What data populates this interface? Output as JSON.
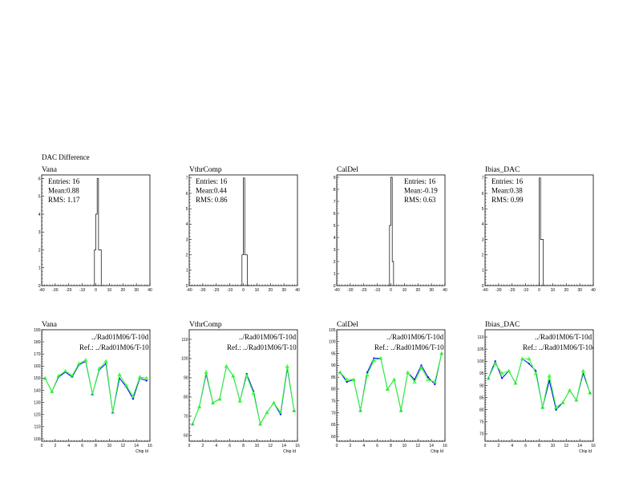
{
  "page_title": "DAC Difference",
  "chart_data": [
    {
      "type": "bar",
      "title": "Vana",
      "stats": {
        "entries": "Entries:  16",
        "mean": "Mean:0.88",
        "rms": "RMS: 1.17"
      },
      "xlim": [
        -40,
        40
      ],
      "ylim": [
        0,
        6.2
      ],
      "xticks": [
        -40,
        -30,
        -20,
        -10,
        0,
        10,
        20,
        30,
        40
      ],
      "yticks": [
        0,
        1,
        2,
        3,
        4,
        5,
        6
      ],
      "bins": [
        [
          -1,
          0
        ],
        [
          0,
          1
        ],
        [
          1,
          2
        ],
        [
          2,
          3
        ],
        [
          3,
          4
        ],
        [
          4,
          5
        ]
      ],
      "values": [
        2,
        4,
        6,
        2,
        2,
        0
      ]
    },
    {
      "type": "bar",
      "title": "VthrComp",
      "stats": {
        "entries": "Entries:  16",
        "mean": "Mean:0.44",
        "rms": "RMS: 0.86"
      },
      "xlim": [
        -40,
        40
      ],
      "ylim": [
        0,
        7.2
      ],
      "xticks": [
        -40,
        -30,
        -20,
        -10,
        0,
        10,
        20,
        30,
        40
      ],
      "yticks": [
        0,
        1,
        2,
        3,
        4,
        5,
        6,
        7
      ],
      "bins": [
        [
          -1,
          0
        ],
        [
          0,
          1
        ],
        [
          1,
          2
        ],
        [
          2,
          3
        ],
        [
          3,
          4
        ]
      ],
      "values": [
        2,
        7,
        2,
        2,
        0
      ]
    },
    {
      "type": "bar",
      "title": "CalDel",
      "stats": {
        "entries": "Entries:  16",
        "mean": "Mean:-0.19",
        "rms": "RMS: 0.63"
      },
      "xlim": [
        -40,
        40
      ],
      "ylim": [
        0,
        9.2
      ],
      "xticks": [
        -40,
        -30,
        -20,
        -10,
        0,
        10,
        20,
        30,
        40
      ],
      "yticks": [
        0,
        1,
        2,
        3,
        4,
        5,
        6,
        7,
        8,
        9
      ],
      "bins": [
        [
          -2,
          -1
        ],
        [
          -1,
          0
        ],
        [
          0,
          1
        ],
        [
          1,
          2
        ]
      ],
      "values": [
        0,
        5,
        9,
        2
      ]
    },
    {
      "type": "bar",
      "title": "Ibias_DAC",
      "stats": {
        "entries": "Entries:  16",
        "mean": "Mean:0.38",
        "rms": "RMS: 0.99"
      },
      "xlim": [
        -40,
        40
      ],
      "ylim": [
        0,
        7.2
      ],
      "xticks": [
        -40,
        -30,
        -20,
        -10,
        0,
        10,
        20,
        30,
        40
      ],
      "yticks": [
        0,
        1,
        2,
        3,
        4,
        5,
        6,
        7
      ],
      "bins": [
        [
          -1,
          0
        ],
        [
          0,
          1
        ],
        [
          1,
          2
        ],
        [
          2,
          3
        ]
      ],
      "values": [
        0,
        7,
        3,
        3
      ]
    },
    {
      "type": "line",
      "title": "Vana",
      "xlabel": "Chip Id",
      "xlim": [
        0,
        16
      ],
      "ylim": [
        98,
        190
      ],
      "xticks": [
        0,
        2,
        4,
        6,
        8,
        10,
        12,
        14,
        16
      ],
      "yticks": [
        100,
        110,
        120,
        130,
        140,
        150,
        160,
        170,
        180,
        190
      ],
      "x": [
        0.5,
        1.5,
        2.5,
        3.5,
        4.5,
        5.5,
        6.5,
        7.5,
        8.5,
        9.5,
        10.5,
        11.5,
        12.5,
        13.5,
        14.5,
        15.5
      ],
      "series": [
        {
          "name": "../Rad01M06/T-10d",
          "color": "#0000ff",
          "values": [
            150,
            139,
            151,
            155,
            151,
            161,
            164,
            137,
            157,
            162,
            122,
            150,
            143,
            133,
            150,
            148
          ]
        },
        {
          "name": "Ref.: ../Rad01M06/T-10",
          "color": "#33ff33",
          "values": [
            150,
            139,
            152,
            156,
            152,
            162,
            165,
            137,
            158,
            164,
            122,
            153,
            144,
            135,
            151,
            150
          ]
        }
      ]
    },
    {
      "type": "line",
      "title": "VthrComp",
      "xlabel": "Chip Id",
      "xlim": [
        0,
        16
      ],
      "ylim": [
        57,
        115
      ],
      "xticks": [
        0,
        2,
        4,
        6,
        8,
        10,
        12,
        14,
        16
      ],
      "yticks": [
        60,
        70,
        80,
        90,
        100,
        110
      ],
      "x": [
        0.5,
        1.5,
        2.5,
        3.5,
        4.5,
        5.5,
        6.5,
        7.5,
        8.5,
        9.5,
        10.5,
        11.5,
        12.5,
        13.5,
        14.5,
        15.5
      ],
      "series": [
        {
          "name": "../Rad01M06/T-10d",
          "color": "#0000ff",
          "values": [
            66,
            75,
            92,
            77,
            79,
            96,
            91,
            78,
            92,
            83,
            66,
            72,
            77,
            71,
            95,
            73
          ]
        },
        {
          "name": "Ref.: ../Rad01M06/T-10",
          "color": "#33ff33",
          "values": [
            66,
            75,
            93,
            77,
            79,
            96,
            91,
            78,
            91,
            82,
            66,
            72,
            77,
            72,
            96,
            73
          ]
        }
      ]
    },
    {
      "type": "line",
      "title": "CalDel",
      "xlabel": "Chip Id",
      "xlim": [
        0,
        16
      ],
      "ylim": [
        58,
        105
      ],
      "xticks": [
        0,
        2,
        4,
        6,
        8,
        10,
        12,
        14,
        16
      ],
      "yticks": [
        60,
        65,
        70,
        75,
        80,
        85,
        90,
        95,
        100,
        105
      ],
      "x": [
        0.5,
        1.5,
        2.5,
        3.5,
        4.5,
        5.5,
        6.5,
        7.5,
        8.5,
        9.5,
        10.5,
        11.5,
        12.5,
        13.5,
        14.5,
        15.5
      ],
      "series": [
        {
          "name": "../Rad01M06/T-10d",
          "color": "#0000ff",
          "values": [
            87,
            83,
            84,
            71,
            87,
            93,
            93,
            80,
            84,
            71,
            87,
            84,
            90,
            85,
            82,
            95
          ]
        },
        {
          "name": "Ref.: ../Rad01M06/T-10",
          "color": "#33ff33",
          "values": [
            87,
            84,
            84,
            71,
            86,
            92,
            93,
            80,
            84,
            71,
            87,
            83,
            89,
            84,
            83,
            95
          ]
        }
      ]
    },
    {
      "type": "line",
      "title": "Ibias_DAC",
      "xlabel": "Chip Id",
      "xlim": [
        0,
        16
      ],
      "ylim": [
        67,
        113
      ],
      "xticks": [
        0,
        2,
        4,
        6,
        8,
        10,
        12,
        14,
        16
      ],
      "yticks": [
        70,
        75,
        80,
        85,
        90,
        95,
        100,
        105,
        110
      ],
      "x": [
        0.5,
        1.5,
        2.5,
        3.5,
        4.5,
        5.5,
        6.5,
        7.5,
        8.5,
        9.5,
        10.5,
        11.5,
        12.5,
        13.5,
        14.5,
        15.5
      ],
      "series": [
        {
          "name": "../Rad01M06/T-10d",
          "color": "#0000ff",
          "values": [
            93,
            100,
            93,
            96,
            91,
            101,
            99,
            96,
            81,
            92,
            80,
            83,
            88,
            84,
            95,
            87
          ]
        },
        {
          "name": "Ref.: ../Rad01M06/T-10d",
          "color": "#33ff33",
          "values": [
            93,
            99,
            95,
            96,
            91,
            101,
            101,
            95,
            81,
            94,
            81,
            83,
            88,
            84,
            96,
            87
          ]
        }
      ]
    }
  ]
}
